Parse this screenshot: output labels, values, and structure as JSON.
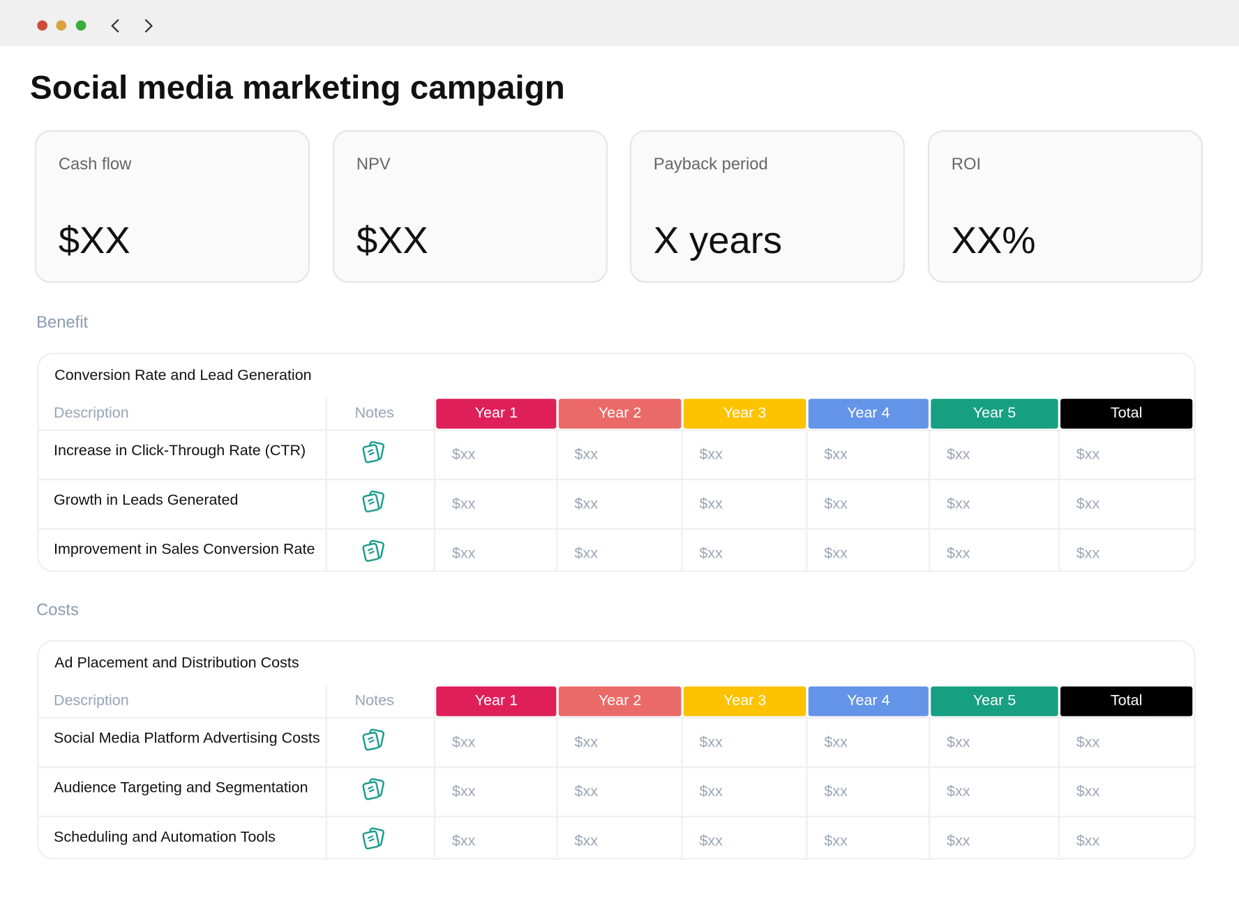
{
  "title": "Social media marketing campaign",
  "metrics": [
    {
      "label": "Cash flow",
      "value": "$XX"
    },
    {
      "label": "NPV",
      "value": "$XX"
    },
    {
      "label": "Payback period",
      "value": "X years"
    },
    {
      "label": "ROI",
      "value": "XX%"
    }
  ],
  "sections": [
    {
      "heading": "Benefit",
      "table": {
        "title": "Conversion Rate and Lead Generation",
        "columns": [
          "Description",
          "Notes",
          "Year 1",
          "Year 2",
          "Year 3",
          "Year 4",
          "Year 5",
          "Total"
        ],
        "rows": [
          {
            "description": "Increase in Click-Through Rate (CTR)",
            "values": [
              "$xx",
              "$xx",
              "$xx",
              "$xx",
              "$xx",
              "$xx"
            ]
          },
          {
            "description": "Growth in Leads Generated",
            "values": [
              "$xx",
              "$xx",
              "$xx",
              "$xx",
              "$xx",
              "$xx"
            ]
          },
          {
            "description": "Improvement in Sales Conversion Rate",
            "values": [
              "$xx",
              "$xx",
              "$xx",
              "$xx",
              "$xx",
              "$xx"
            ]
          }
        ]
      }
    },
    {
      "heading": "Costs",
      "table": {
        "title": "Ad Placement and Distribution Costs",
        "columns": [
          "Description",
          "Notes",
          "Year 1",
          "Year 2",
          "Year 3",
          "Year 4",
          "Year 5",
          "Total"
        ],
        "rows": [
          {
            "description": "Social Media Platform Advertising Costs",
            "values": [
              "$xx",
              "$xx",
              "$xx",
              "$xx",
              "$xx",
              "$xx"
            ]
          },
          {
            "description": "Audience Targeting and Segmentation",
            "values": [
              "$xx",
              "$xx",
              "$xx",
              "$xx",
              "$xx",
              "$xx"
            ]
          },
          {
            "description": "Scheduling and Automation Tools",
            "values": [
              "$xx",
              "$xx",
              "$xx",
              "$xx",
              "$xx",
              "$xx"
            ]
          }
        ]
      }
    }
  ]
}
